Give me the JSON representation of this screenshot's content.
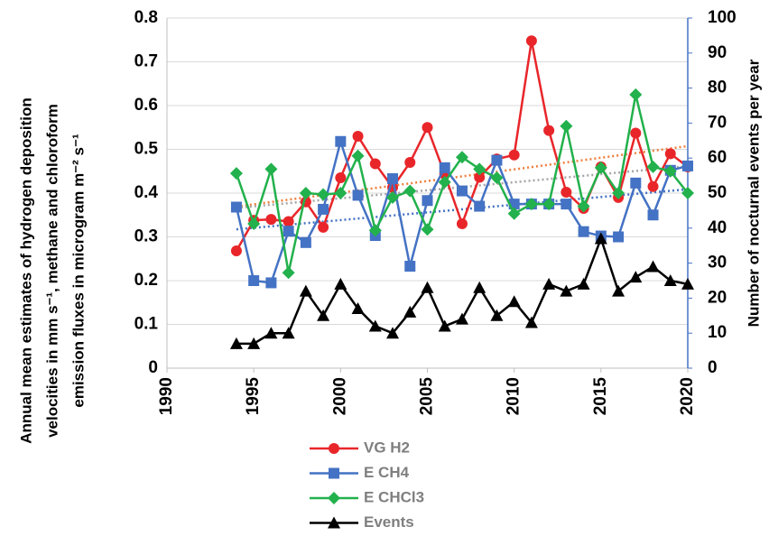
{
  "chart_data": {
    "type": "line",
    "y_label_lines": [
      "Annual mean estimates of hydrogen deposition",
      "velocities in mm s⁻¹, methane and chloroform",
      "emission fluxes in microgram m⁻² s⁻¹"
    ],
    "y2_label": "Number of nocturnal events per year",
    "x": [
      1994,
      1995,
      1996,
      1997,
      1998,
      1999,
      2000,
      2001,
      2002,
      2003,
      2004,
      2005,
      2006,
      2007,
      2008,
      2009,
      2010,
      2011,
      2012,
      2013,
      2014,
      2015,
      2016,
      2017,
      2018,
      2019,
      2020
    ],
    "xlim": [
      1990,
      2020
    ],
    "xticks": [
      1990,
      1995,
      2000,
      2005,
      2010,
      2015,
      2020
    ],
    "ylim": [
      0,
      0.8
    ],
    "yticks": [
      0,
      0.1,
      0.2,
      0.3,
      0.4,
      0.5,
      0.6,
      0.7,
      0.8
    ],
    "y2lim": [
      0,
      100
    ],
    "y2ticks": [
      0,
      10,
      20,
      30,
      40,
      50,
      60,
      70,
      80,
      90,
      100
    ],
    "grid": true,
    "series": [
      {
        "name": "VG H2",
        "color": "#e8262a",
        "marker": "circle",
        "trendline": true,
        "trend_color": "#f07e3a",
        "values": [
          0.268,
          0.338,
          0.34,
          0.335,
          0.38,
          0.322,
          0.435,
          0.53,
          0.467,
          0.413,
          0.47,
          0.55,
          0.443,
          0.33,
          0.436,
          0.478,
          0.487,
          0.748,
          0.543,
          0.402,
          0.365,
          0.46,
          0.39,
          0.537,
          0.415,
          0.49,
          0.46
        ]
      },
      {
        "name": "E CH4",
        "color": "#4472c4",
        "marker": "square",
        "trendline": true,
        "trend_color": "#4472c4",
        "values": [
          0.368,
          0.2,
          0.195,
          0.313,
          0.287,
          0.363,
          0.518,
          0.395,
          0.303,
          0.433,
          0.233,
          0.383,
          0.458,
          0.405,
          0.37,
          0.475,
          0.375,
          0.375,
          0.375,
          0.375,
          0.312,
          0.302,
          0.3,
          0.423,
          0.35,
          0.452,
          0.462
        ]
      },
      {
        "name": "E CHCl3",
        "color": "#22b14c",
        "marker": "diamond",
        "trendline": true,
        "trend_color": "#a5a5a5",
        "values": [
          0.445,
          0.33,
          0.455,
          0.218,
          0.4,
          0.397,
          0.4,
          0.485,
          0.315,
          0.39,
          0.405,
          0.317,
          0.425,
          0.482,
          0.455,
          0.435,
          0.353,
          0.375,
          0.375,
          0.553,
          0.37,
          0.458,
          0.4,
          0.625,
          0.46,
          0.45,
          0.4
        ]
      },
      {
        "name": "Events",
        "color": "#000000",
        "marker": "triangle",
        "axis": "y2",
        "values": [
          7,
          7,
          10,
          10,
          22,
          15,
          24,
          17,
          12,
          10,
          16,
          23,
          12,
          14,
          23,
          15,
          19,
          13,
          24,
          22,
          24,
          37,
          22,
          26,
          29,
          25,
          24
        ]
      }
    ]
  }
}
